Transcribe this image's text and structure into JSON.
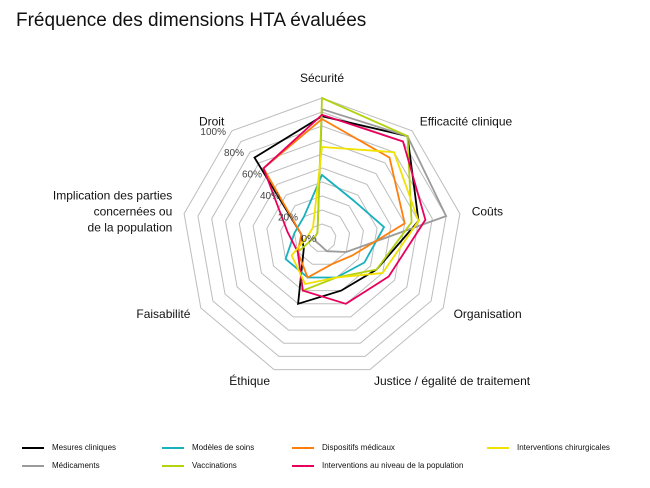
{
  "title": "Fréquence des dimensions HTA évaluées",
  "chart_data": {
    "type": "radar",
    "title": "Fréquence des dimensions HTA évaluées",
    "axes": [
      "Sécurité",
      "Efficacité clinique",
      "Coûts",
      "Organisation",
      "Justice / égalité de traitement",
      "Éthique",
      "Faisabilité",
      "Implication des parties\nconcernées ou\nde la population",
      "Droit"
    ],
    "radial_ticks": [
      "0%",
      "20%",
      "40%",
      "60%",
      "80%",
      "100%"
    ],
    "rlim": [
      0,
      100
    ],
    "grid": true,
    "legend_position": "bottom",
    "series": [
      {
        "name": "Mesures cliniques",
        "color": "#000000",
        "values": [
          87,
          95,
          70,
          45,
          40,
          50,
          15,
          15,
          75
        ]
      },
      {
        "name": "Médicaments",
        "color": "#9b9b9b",
        "values": [
          92,
          95,
          90,
          20,
          10,
          5,
          5,
          5,
          5
        ]
      },
      {
        "name": "Modèles de soins",
        "color": "#17b1be",
        "values": [
          45,
          35,
          45,
          35,
          30,
          30,
          30,
          20,
          20
        ]
      },
      {
        "name": "Vaccinations",
        "color": "#b5d20f",
        "values": [
          100,
          95,
          65,
          45,
          30,
          40,
          20,
          5,
          5
        ]
      },
      {
        "name": "Dispositifs médicaux",
        "color": "#ff7f0e",
        "values": [
          85,
          75,
          60,
          25,
          20,
          30,
          20,
          15,
          65
        ]
      },
      {
        "name": "Interventions au niveau de la population",
        "color": "#e8005c",
        "values": [
          88,
          90,
          75,
          55,
          50,
          40,
          20,
          25,
          65
        ]
      },
      {
        "name": "Interventions chirurgicales",
        "color": "#f1e200",
        "values": [
          65,
          80,
          70,
          50,
          30,
          35,
          25,
          10,
          10
        ]
      }
    ]
  },
  "legend": [
    {
      "label": "Mesures cliniques",
      "color": "#000000"
    },
    {
      "label": "Modèles de soins",
      "color": "#17b1be"
    },
    {
      "label": "Dispositifs médicaux",
      "color": "#ff7f0e"
    },
    {
      "label": "Interventions chirurgicales",
      "color": "#f1e200"
    },
    {
      "label": "Médicaments",
      "color": "#9b9b9b"
    },
    {
      "label": "Vaccinations",
      "color": "#b5d20f"
    },
    {
      "label": "Interventions au niveau de la population",
      "color": "#e8005c"
    }
  ]
}
